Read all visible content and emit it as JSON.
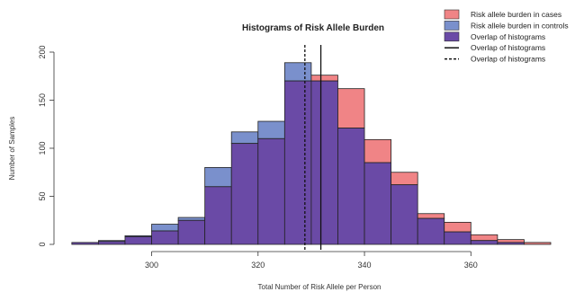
{
  "chart_data": {
    "type": "bar",
    "title": "Histograms of Risk Allele Burden",
    "xlabel": "Total Number of Risk Allele per Person",
    "ylabel": "Number of Samples",
    "xlim": [
      283,
      375
    ],
    "ylim": [
      0,
      200
    ],
    "x_ticks": [
      300,
      320,
      340,
      360
    ],
    "y_ticks": [
      0,
      50,
      100,
      150,
      200
    ],
    "bin_width": 5,
    "bin_starts": [
      285,
      290,
      295,
      300,
      305,
      310,
      315,
      320,
      325,
      330,
      335,
      340,
      345,
      350,
      355,
      360,
      365,
      370
    ],
    "series": [
      {
        "name": "Risk allele burden in cases",
        "values": [
          2,
          3,
          8,
          14,
          25,
          60,
          105,
          110,
          170,
          176,
          162,
          109,
          75,
          32,
          23,
          10,
          5,
          2
        ]
      },
      {
        "name": "Risk allele burden in controls",
        "values": [
          2,
          4,
          9,
          21,
          28,
          80,
          117,
          128,
          189,
          170,
          121,
          85,
          62,
          27,
          13,
          4,
          2,
          0
        ]
      }
    ],
    "vertical_lines": [
      {
        "x": 331.8,
        "style": "solid"
      },
      {
        "x": 328.8,
        "style": "dashed"
      }
    ],
    "colors": {
      "cases": "#f08486",
      "controls": "#7a90cc",
      "overlap": "#6a4aa6",
      "outline": "#222222"
    },
    "legend": {
      "placement": "top-right",
      "items": [
        {
          "label": "Risk allele burden in cases",
          "kind": "box",
          "color": "#f08486"
        },
        {
          "label": "Risk allele burden in controls",
          "kind": "box",
          "color": "#7a90cc"
        },
        {
          "label": "Overlap of histograms",
          "kind": "box",
          "color": "#6a4aa6"
        },
        {
          "label": "Overlap of histograms",
          "kind": "solid-line"
        },
        {
          "label": "Overlap of histograms",
          "kind": "dashed-line"
        }
      ]
    }
  }
}
